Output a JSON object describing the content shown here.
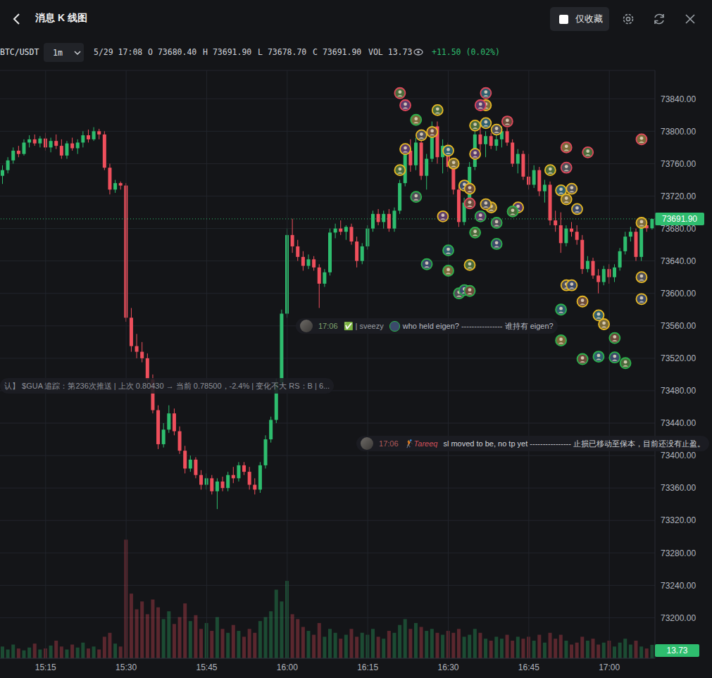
{
  "chart_data": {
    "type": "candlestick",
    "title": "消息 K 线图",
    "filter_label": "仅收藏",
    "symbol": "BTC/USDT",
    "interval": "1m",
    "time": "5/29 17:08",
    "info": [
      {
        "label": "O",
        "value": "73680.40"
      },
      {
        "label": "H",
        "value": "73691.90"
      },
      {
        "label": "L",
        "value": "73678.70"
      },
      {
        "label": "C",
        "value": "73691.90"
      },
      {
        "label": "VOL",
        "value": "13.73"
      }
    ],
    "change": "+11.50 (0.02%)",
    "last_price_label": "73691.90",
    "volume_label": "13.73",
    "categories": [
      null,
      null,
      null,
      null,
      null,
      null,
      null,
      null,
      "15:15",
      null,
      null,
      null,
      null,
      null,
      null,
      null,
      null,
      null,
      null,
      null,
      null,
      null,
      null,
      "15:30",
      null,
      null,
      null,
      null,
      null,
      null,
      null,
      null,
      null,
      null,
      null,
      null,
      null,
      null,
      "15:45",
      null,
      null,
      null,
      null,
      null,
      null,
      null,
      null,
      null,
      null,
      null,
      null,
      null,
      null,
      "16:00",
      null,
      null,
      null,
      null,
      null,
      null,
      null,
      null,
      null,
      null,
      null,
      null,
      null,
      null,
      "16:15",
      null,
      null,
      null,
      null,
      null,
      null,
      null,
      null,
      null,
      null,
      null,
      null,
      null,
      null,
      "16:30",
      null,
      null,
      null,
      null,
      null,
      null,
      null,
      null,
      null,
      null,
      null,
      null,
      null,
      null,
      "16:45",
      null,
      null,
      null,
      null,
      null,
      null,
      null,
      null,
      null,
      null,
      null,
      null,
      null,
      null,
      "17:00",
      null,
      null,
      null,
      null,
      null,
      null,
      null,
      null
    ],
    "open": [
      73745,
      73752,
      73764,
      73776,
      73772,
      73786,
      73790,
      73785,
      73791,
      73780,
      73788,
      73782,
      73770,
      73785,
      73779,
      73786,
      73795,
      73790,
      73800,
      73796,
      73755,
      73728,
      73736,
      73733,
      73570,
      73535,
      73528,
      73520,
      73494,
      73456,
      73414,
      73432,
      73452,
      73430,
      73406,
      73384,
      73395,
      73376,
      73364,
      73372,
      73356,
      73368,
      73360,
      73376,
      73372,
      73388,
      73380,
      73364,
      73358,
      73388,
      73420,
      73444,
      73490,
      73575,
      73672,
      73658,
      73645,
      73634,
      73642,
      73632,
      73612,
      73626,
      73675,
      73680,
      73676,
      73682,
      73664,
      73640,
      73658,
      73680,
      73698,
      73688,
      73698,
      73680,
      73702,
      73736,
      73776,
      73758,
      73786,
      73745,
      73766,
      73806,
      73768,
      73782,
      73756,
      73728,
      73688,
      73712,
      73756,
      73796,
      73784,
      73794,
      73782,
      73790,
      73800,
      73786,
      73760,
      73772,
      73744,
      73734,
      73752,
      73726,
      73734,
      73690,
      73684,
      73662,
      73680,
      73676,
      73666,
      73630,
      73640,
      73622,
      73614,
      73630,
      73620,
      73632,
      73652,
      73670,
      73676,
      73645,
      73684,
      73680.4
    ],
    "high": [
      73758,
      73768,
      73780,
      73782,
      73790,
      73795,
      73796,
      73794,
      73798,
      73792,
      73796,
      73790,
      73788,
      73792,
      73790,
      73800,
      73802,
      73805,
      73803,
      73800,
      73760,
      73740,
      73738,
      73736,
      73582,
      73550,
      73540,
      73526,
      73500,
      73462,
      73440,
      73462,
      73458,
      73436,
      73412,
      73400,
      73398,
      73382,
      73378,
      73376,
      73372,
      73374,
      73380,
      73386,
      73392,
      73392,
      73386,
      73372,
      73392,
      73425,
      73448,
      73495,
      73580,
      73680,
      73692,
      73666,
      73652,
      73648,
      73646,
      73636,
      73630,
      73680,
      73686,
      73690,
      73684,
      73686,
      73670,
      73662,
      73684,
      73702,
      73704,
      73702,
      73704,
      73706,
      73740,
      73782,
      73790,
      73792,
      73796,
      73772,
      73812,
      73812,
      73790,
      73786,
      73762,
      73734,
      73718,
      73762,
      73800,
      73808,
      73800,
      73798,
      73796,
      73806,
      73804,
      73790,
      73778,
      73776,
      73772,
      73758,
      73756,
      73740,
      73738,
      73702,
      73700,
      73684,
      73688,
      73684,
      73672,
      73646,
      73644,
      73630,
      73634,
      73636,
      73636,
      73656,
      73676,
      73682,
      73680,
      73690,
      73688,
      73691.9
    ],
    "low": [
      73735,
      73748,
      73760,
      73768,
      73770,
      73780,
      73782,
      73780,
      73776,
      73774,
      73778,
      73766,
      73766,
      73776,
      73772,
      73780,
      73786,
      73788,
      73790,
      73752,
      73722,
      73724,
      73728,
      73565,
      73528,
      73520,
      73515,
      73490,
      73452,
      73408,
      73410,
      73428,
      73425,
      73402,
      73378,
      73380,
      73372,
      73358,
      73358,
      73352,
      73334,
      73356,
      73356,
      73366,
      73368,
      73376,
      73358,
      73352,
      73354,
      73384,
      73416,
      73440,
      73486,
      73570,
      73650,
      73640,
      73628,
      73630,
      73628,
      73582,
      73608,
      73622,
      73668,
      73672,
      73666,
      73660,
      73632,
      73636,
      73654,
      73676,
      73684,
      73680,
      73676,
      73676,
      73698,
      73732,
      73750,
      73752,
      73740,
      73728,
      73762,
      73760,
      73748,
      73750,
      73722,
      73682,
      73684,
      73708,
      73752,
      73776,
      73768,
      73778,
      73776,
      73780,
      73782,
      73756,
      73748,
      73740,
      73728,
      73730,
      73720,
      73712,
      73684,
      73676,
      73650,
      73658,
      73670,
      73660,
      73624,
      73626,
      73618,
      73600,
      73610,
      73612,
      73614,
      73628,
      73648,
      73664,
      73640,
      73640,
      73676,
      73678.7
    ],
    "close": [
      73752,
      73764,
      73776,
      73772,
      73786,
      73790,
      73785,
      73791,
      73780,
      73788,
      73782,
      73770,
      73785,
      73779,
      73786,
      73795,
      73790,
      73800,
      73796,
      73755,
      73728,
      73736,
      73733,
      73570,
      73535,
      73528,
      73520,
      73494,
      73456,
      73414,
      73432,
      73452,
      73430,
      73406,
      73384,
      73395,
      73376,
      73364,
      73372,
      73356,
      73368,
      73360,
      73376,
      73372,
      73388,
      73380,
      73364,
      73358,
      73388,
      73420,
      73444,
      73490,
      73575,
      73672,
      73658,
      73645,
      73634,
      73642,
      73632,
      73612,
      73626,
      73675,
      73680,
      73676,
      73682,
      73664,
      73640,
      73658,
      73680,
      73698,
      73688,
      73698,
      73680,
      73702,
      73736,
      73776,
      73758,
      73786,
      73745,
      73766,
      73806,
      73768,
      73782,
      73756,
      73728,
      73688,
      73712,
      73756,
      73796,
      73784,
      73794,
      73782,
      73790,
      73800,
      73786,
      73760,
      73772,
      73744,
      73734,
      73752,
      73726,
      73734,
      73690,
      73684,
      73662,
      73680,
      73676,
      73666,
      73630,
      73640,
      73622,
      73614,
      73630,
      73620,
      73632,
      73652,
      73670,
      73676,
      73645,
      73684,
      73680.4,
      73691.9
    ],
    "series": [
      {
        "type": "bar",
        "axis": "y2",
        "values": [
          12,
          9,
          14,
          10,
          8,
          11,
          15,
          9,
          10,
          13,
          18,
          12,
          9,
          14,
          11,
          16,
          10,
          12,
          9,
          22,
          26,
          15,
          12,
          121,
          66,
          50,
          58,
          45,
          60,
          52,
          40,
          48,
          35,
          42,
          56,
          38,
          44,
          30,
          36,
          28,
          42,
          30,
          26,
          34,
          28,
          22,
          30,
          26,
          38,
          42,
          48,
          70,
          58,
          79,
          45,
          40,
          32,
          28,
          24,
          36,
          22,
          30,
          26,
          20,
          24,
          30,
          22,
          26,
          24,
          30,
          22,
          20,
          28,
          26,
          34,
          40,
          30,
          36,
          32,
          28,
          30,
          26,
          24,
          28,
          26,
          30,
          22,
          24,
          30,
          26,
          20,
          18,
          22,
          20,
          24,
          18,
          22,
          20,
          22,
          18,
          24,
          16,
          26,
          20,
          24,
          18,
          14,
          16,
          22,
          18,
          20,
          14,
          16,
          18,
          12,
          16,
          20,
          14,
          18,
          12,
          10,
          13.73
        ]
      },
      {
        "type": "scatter",
        "color": "#e8b923",
        "marker": "circle",
        "x": [
          74,
          75,
          78,
          80,
          81,
          83,
          84,
          86,
          87,
          87,
          82,
          88,
          88,
          90,
          90,
          90,
          91,
          92,
          96,
          102,
          104,
          105,
          106,
          107,
          105,
          106,
          108,
          111,
          112,
          119,
          119,
          119
        ],
        "values": [
          73752,
          73778,
          73795,
          73799,
          73826,
          73776,
          73760,
          73733,
          73729,
          73635,
          73695,
          73807,
          73772,
          73810,
          73832,
          73710,
          73706,
          73802,
          73706,
          73752,
          73727,
          73716,
          73729,
          73704,
          73610,
          73610,
          73590,
          73573,
          73562,
          73687,
          73620,
          73593
        ]
      },
      {
        "type": "scatter",
        "color": "#e0475b",
        "marker": "circle",
        "x": [
          74,
          75,
          89,
          90,
          94,
          105,
          109,
          105,
          119,
          87
        ],
        "values": [
          73847,
          73832,
          73832,
          73847,
          73812,
          73780,
          73774,
          73755,
          73790,
          73711
        ]
      },
      {
        "type": "scatter",
        "color": "#2bb24c",
        "marker": "circle",
        "x": [
          77,
          77,
          89,
          92,
          95,
          88,
          92,
          83,
          79,
          83,
          86,
          87,
          85,
          104,
          104,
          108,
          111,
          114,
          116,
          114
        ],
        "values": [
          73814,
          73719,
          73695,
          73687,
          73701,
          73675,
          73661,
          73653,
          73636,
          73628,
          73604,
          73603,
          73600,
          73580,
          73542,
          73519,
          73522,
          73521,
          73514,
          73545
        ]
      }
    ],
    "ylim": [
      73150,
      73875
    ],
    "yticks": [
      {
        "value": 73200,
        "label": "73200.00"
      },
      {
        "value": 73240,
        "label": "73240.00"
      },
      {
        "value": 73280,
        "label": "73280.00"
      },
      {
        "value": 73320,
        "label": "73320.00"
      },
      {
        "value": 73360,
        "label": "73360.00"
      },
      {
        "value": 73400,
        "label": "73400.00"
      },
      {
        "value": 73440,
        "label": "73440.00"
      },
      {
        "value": 73480,
        "label": "73480.00"
      },
      {
        "value": 73520,
        "label": "73520.00"
      },
      {
        "value": 73560,
        "label": "73560.00"
      },
      {
        "value": 73600,
        "label": "73600.00"
      },
      {
        "value": 73640,
        "label": "73640.00"
      },
      {
        "value": 73680,
        "label": "73680.00"
      },
      {
        "value": 73720,
        "label": "73720.00"
      },
      {
        "value": 73760,
        "label": "73760.00"
      },
      {
        "value": 73800,
        "label": "73800.00"
      },
      {
        "value": 73840,
        "label": "73840.00"
      }
    ],
    "y2lim": [
      0,
      600
    ],
    "grid": true,
    "messages": [
      {
        "time": "17:06",
        "user": "✅ | sveezy",
        "text": "who held eigen? ---------------- 谁持有 eigen?"
      },
      {
        "text": "认】 $GUA 追踪：第236次推送 | 上次 0.80430 → 当前 0.78500，-2.4% | 变化不大 RS：B | 6..."
      },
      {
        "time": "17:06",
        "user": "🏌Tareeq",
        "text": "sl moved to be, no tp yet ---------------- 止损已移动至保本，目前还没有止盈。"
      }
    ]
  }
}
